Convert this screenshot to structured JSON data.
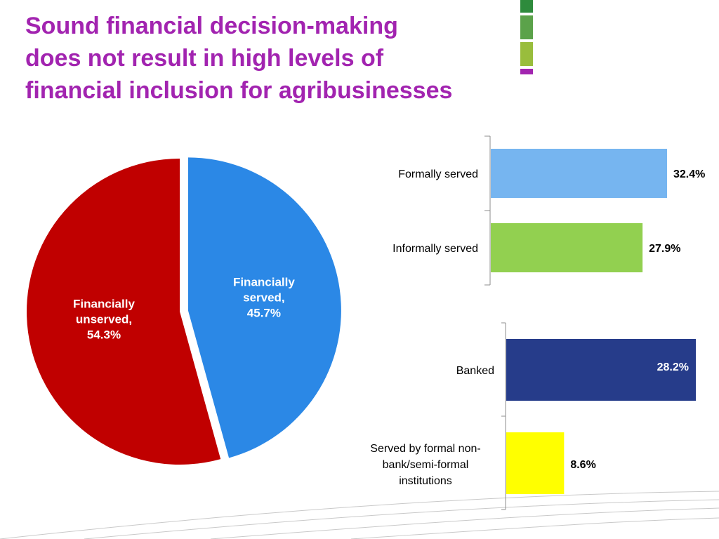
{
  "slide": {
    "title_lines": [
      "Sound financial decision-making",
      "does not result in high levels of",
      "financial inclusion for agribusinesses"
    ],
    "accent_colors": [
      "#2e8b3c",
      "#5ba24a",
      "#99bd3c",
      "#a224b0"
    ]
  },
  "chart_data": [
    {
      "type": "pie",
      "title": "",
      "slices": [
        {
          "label": "Financially served,",
          "percent_label": "45.7%",
          "value": 45.7,
          "color": "#2b88e6",
          "exploded": true
        },
        {
          "label": "Financially unserved,",
          "percent_label": "54.3%",
          "value": 54.3,
          "color": "#c00000",
          "exploded": false
        }
      ]
    },
    {
      "type": "bar",
      "orientation": "horizontal",
      "categories": [
        "Formally served",
        "Informally served"
      ],
      "values": [
        32.4,
        27.9
      ],
      "value_labels": [
        "32.4%",
        "27.9%"
      ],
      "colors": [
        "#76b5f0",
        "#92d050"
      ],
      "xlim": [
        0,
        32.4
      ]
    },
    {
      "type": "bar",
      "orientation": "horizontal",
      "categories": [
        "Banked",
        "Served by formal non-bank/semi-formal institutions"
      ],
      "category_lines": [
        [
          "Banked"
        ],
        [
          "Served by formal non-",
          "bank/semi-formal",
          "institutions"
        ]
      ],
      "values": [
        28.2,
        8.6
      ],
      "value_labels": [
        "28.2%",
        "8.6%"
      ],
      "colors": [
        "#263c8a",
        "#ffff00"
      ],
      "label_colors": [
        "#ffffff",
        "#000000"
      ],
      "xlim": [
        0,
        28.2
      ]
    }
  ]
}
